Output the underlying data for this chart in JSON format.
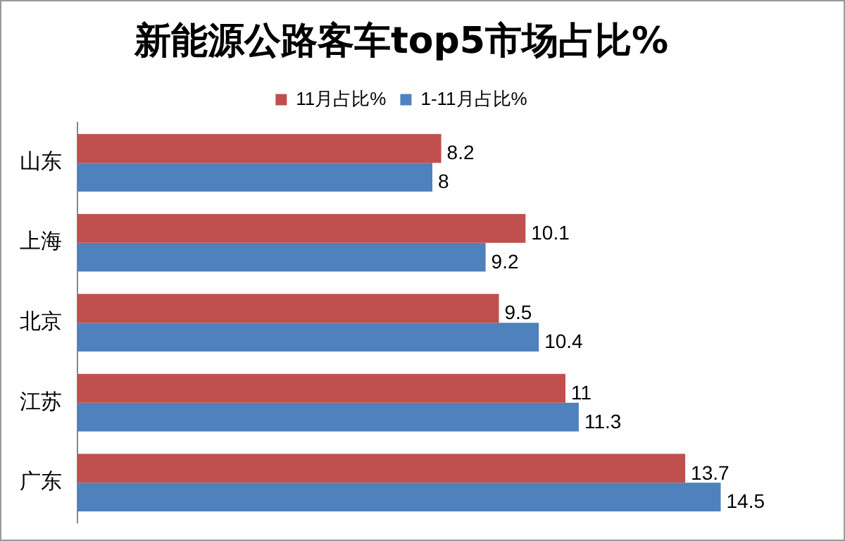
{
  "chart_data": {
    "type": "bar",
    "orientation": "horizontal",
    "title": "新能源公路客车top5市场占比%",
    "categories": [
      "山东",
      "上海",
      "北京",
      "江苏",
      "广东"
    ],
    "series": [
      {
        "name": "11月占比%",
        "color": "#c0504d",
        "values": [
          8.2,
          10.1,
          9.5,
          11,
          13.7
        ]
      },
      {
        "name": "1-11月占比%",
        "color": "#4f81bd",
        "values": [
          8,
          9.2,
          10.4,
          11.3,
          14.5
        ]
      }
    ],
    "data_labels": true,
    "grid": false,
    "legend": "top"
  }
}
